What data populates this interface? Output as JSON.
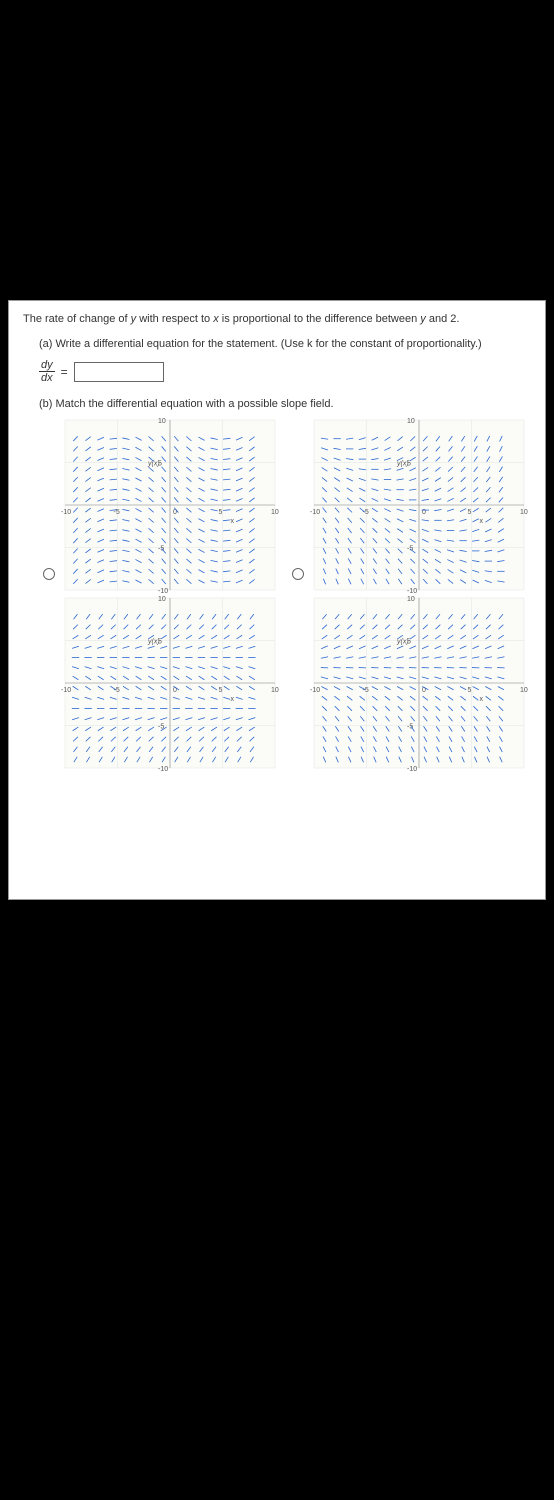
{
  "statement": {
    "prefix": "The rate of change of ",
    "var1": "y",
    "mid1": " with respect to ",
    "var2": "x",
    "mid2": " is proportional to the difference between ",
    "var3": "y",
    "suffix": " and 2."
  },
  "part_a": {
    "label": "(a) Write a differential equation for the statement. (Use ",
    "k": "k",
    "label2": " for the constant of proportionality.)",
    "fraction_num": "dy",
    "fraction_den": "dx",
    "equals": "="
  },
  "part_b": {
    "label": "(b) Match the differential equation with a possible slope field."
  },
  "chart_common": {
    "xlim": [
      -10,
      10
    ],
    "ylim": [
      -10,
      10
    ],
    "ticks": [
      -10,
      -5,
      0,
      5,
      10
    ],
    "grid_color": "#dddddd",
    "axis_color": "#888888",
    "segment_color": "#2a66d1",
    "bg": "#fbfcf8",
    "ylabel": "y(x)",
    "xlabel": "x",
    "segment_length": 0.7
  },
  "fields": [
    {
      "id": "A",
      "type": "slope_vertical_bands",
      "description": "slope = (|x|-5)/3, depends on x only",
      "show_radio": true
    },
    {
      "id": "B",
      "type": "slope_diag_right",
      "description": "slope = (x + y)/6",
      "show_radio": true
    },
    {
      "id": "C",
      "type": "slope_abs_y",
      "description": "slope = (|y|-3)/3",
      "show_radio": false
    },
    {
      "id": "D",
      "type": "slope_y_minus_2",
      "description": "slope = (y-2)/4",
      "show_radio": false
    }
  ]
}
